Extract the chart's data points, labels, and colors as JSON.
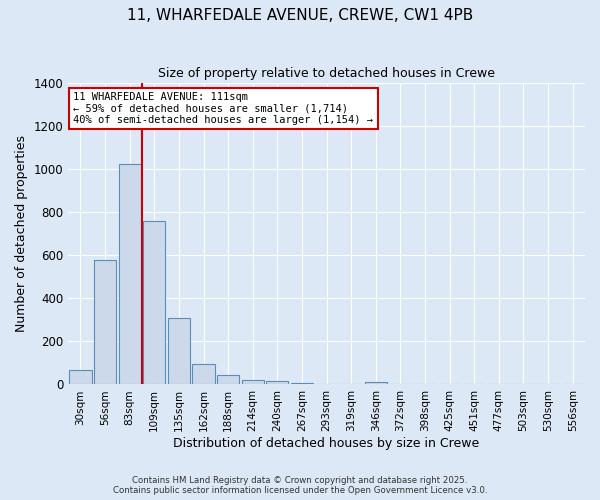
{
  "title_line1": "11, WHARFEDALE AVENUE, CREWE, CW1 4PB",
  "title_line2": "Size of property relative to detached houses in Crewe",
  "xlabel": "Distribution of detached houses by size in Crewe",
  "ylabel": "Number of detached properties",
  "categories": [
    "30sqm",
    "56sqm",
    "83sqm",
    "109sqm",
    "135sqm",
    "162sqm",
    "188sqm",
    "214sqm",
    "240sqm",
    "267sqm",
    "293sqm",
    "319sqm",
    "346sqm",
    "372sqm",
    "398sqm",
    "425sqm",
    "451sqm",
    "477sqm",
    "503sqm",
    "530sqm",
    "556sqm"
  ],
  "values": [
    65,
    580,
    1025,
    760,
    310,
    95,
    45,
    22,
    14,
    8,
    0,
    0,
    12,
    0,
    0,
    0,
    0,
    0,
    0,
    0,
    0
  ],
  "bar_color": "#ccd9ea",
  "bar_edge_color": "#5b8db8",
  "red_line_index": 2,
  "red_line_color": "#cc0000",
  "annotation_text": "11 WHARFEDALE AVENUE: 111sqm\n← 59% of detached houses are smaller (1,714)\n40% of semi-detached houses are larger (1,154) →",
  "annotation_box_facecolor": "#ffffff",
  "annotation_box_edgecolor": "#cc0000",
  "ylim": [
    0,
    1400
  ],
  "yticks": [
    0,
    200,
    400,
    600,
    800,
    1000,
    1200,
    1400
  ],
  "background_color": "#dce8f5",
  "grid_color": "#ffffff",
  "footer_line1": "Contains HM Land Registry data © Crown copyright and database right 2025.",
  "footer_line2": "Contains public sector information licensed under the Open Government Licence v3.0."
}
